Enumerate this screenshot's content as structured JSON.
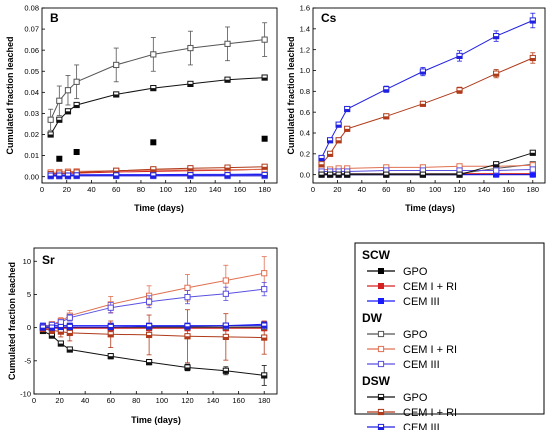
{
  "chart_data": [
    {
      "type": "line",
      "title": "B",
      "xlabel": "Time (days)",
      "ylabel": "Cumulated fraction leached",
      "xlim": [
        0,
        190
      ],
      "ylim": [
        -0.003,
        0.08
      ],
      "xticks": [
        0,
        20,
        40,
        60,
        80,
        100,
        120,
        140,
        160,
        180
      ],
      "yticks": [
        0.0,
        0.01,
        0.02,
        0.03,
        0.04,
        0.05,
        0.06,
        0.07,
        0.08
      ],
      "tick_decimals": 2,
      "series": [
        {
          "name": "SCW GPO",
          "x": [
            14,
            28,
            90,
            180
          ],
          "y": [
            0.0085,
            0.0117,
            0.0163,
            0.018
          ],
          "err": [
            0,
            0,
            0,
            0
          ],
          "line": false
        },
        {
          "name": "SCW CEM I + RI",
          "x": [
            7,
            14,
            21,
            28,
            60,
            90,
            120,
            150,
            180
          ],
          "y": [
            0.0015,
            0.0015,
            0.0015,
            0.0017,
            0.0022,
            0.0025,
            0.0028,
            0.003,
            0.0035
          ],
          "err": [
            0,
            0,
            0,
            0,
            0,
            0,
            0,
            0,
            0
          ]
        },
        {
          "name": "SCW CEM III",
          "x": [
            7,
            14,
            21,
            28,
            60,
            90,
            120,
            150,
            180
          ],
          "y": [
            0.0008,
            0.0008,
            0.0008,
            0.0009,
            0.001,
            0.001,
            0.0011,
            0.0011,
            0.0012
          ],
          "err": [
            0,
            0,
            0,
            0,
            0,
            0,
            0,
            0,
            0
          ]
        },
        {
          "name": "DW GPO",
          "x": [
            7,
            14,
            21,
            28,
            60,
            90,
            120,
            150,
            180
          ],
          "y": [
            0.027,
            0.036,
            0.041,
            0.045,
            0.053,
            0.058,
            0.061,
            0.063,
            0.065
          ],
          "err": [
            0.005,
            0.007,
            0.007,
            0.008,
            0.008,
            0.008,
            0.008,
            0.008,
            0.008
          ]
        },
        {
          "name": "DW CEM I + RI",
          "x": [
            7,
            14,
            21,
            28,
            60,
            90,
            120,
            150,
            180
          ],
          "y": [
            0.002,
            0.0022,
            0.0024,
            0.0025,
            0.0028,
            0.003,
            0.0032,
            0.0033,
            0.0035
          ],
          "err": [
            0,
            0,
            0,
            0,
            0,
            0,
            0,
            0,
            0
          ]
        },
        {
          "name": "DW CEM III",
          "x": [
            7,
            14,
            21,
            28,
            60,
            90,
            120,
            150,
            180
          ],
          "y": [
            0.0002,
            0.0002,
            0.0002,
            0.0003,
            0.0003,
            0.0003,
            0.0003,
            0.0003,
            0.0003
          ],
          "err": [
            0,
            0,
            0,
            0,
            0,
            0,
            0,
            0,
            0
          ]
        },
        {
          "name": "DSW GPO",
          "x": [
            7,
            14,
            21,
            28,
            60,
            90,
            120,
            150,
            180
          ],
          "y": [
            0.02,
            0.027,
            0.031,
            0.034,
            0.039,
            0.042,
            0.044,
            0.046,
            0.047
          ],
          "err": [
            0.001,
            0.001,
            0.001,
            0.001,
            0.001,
            0.001,
            0.001,
            0.001,
            0.001
          ]
        },
        {
          "name": "DSW CEM I + RI",
          "x": [
            7,
            14,
            21,
            28,
            60,
            90,
            120,
            150,
            180
          ],
          "y": [
            0.0012,
            0.0015,
            0.0018,
            0.002,
            0.0028,
            0.0035,
            0.004,
            0.0043,
            0.0047
          ],
          "err": [
            0,
            0,
            0,
            0,
            0,
            0,
            0,
            0,
            0
          ]
        },
        {
          "name": "DSW CEM III",
          "x": [
            7,
            14,
            21,
            28,
            60,
            90,
            120,
            150,
            180
          ],
          "y": [
            0.0005,
            0.0005,
            0.0005,
            0.0006,
            0.0006,
            0.0006,
            0.0007,
            0.0007,
            0.0008
          ],
          "err": [
            0,
            0,
            0,
            0,
            0,
            0,
            0,
            0,
            0
          ]
        }
      ]
    },
    {
      "type": "line",
      "title": "Cs",
      "xlabel": "Time (days)",
      "ylabel": "Cumulated fraction leached",
      "xlim": [
        0,
        190
      ],
      "ylim": [
        -0.08,
        1.6
      ],
      "xticks": [
        0,
        20,
        40,
        60,
        80,
        100,
        120,
        140,
        160,
        180
      ],
      "yticks": [
        0.0,
        0.2,
        0.4,
        0.6,
        0.8,
        1.0,
        1.2,
        1.4,
        1.6
      ],
      "tick_decimals": 1,
      "series": [
        {
          "name": "SCW GPO",
          "x": [
            7,
            14,
            21,
            28,
            60,
            90,
            120,
            150,
            180
          ],
          "y": [
            0.005,
            0.005,
            0.005,
            0.005,
            0.005,
            0.005,
            0.005,
            0.005,
            0.005
          ],
          "err": [
            0,
            0,
            0,
            0,
            0,
            0,
            0,
            0,
            0
          ]
        },
        {
          "name": "SCW CEM I + RI",
          "x": [
            7,
            14,
            21,
            28,
            60,
            90,
            120,
            150,
            180
          ],
          "y": [
            0.01,
            0.01,
            0.01,
            0.01,
            0.01,
            0.01,
            0.01,
            0.01,
            0.01
          ],
          "err": [
            0,
            0,
            0,
            0,
            0,
            0,
            0,
            0,
            0
          ]
        },
        {
          "name": "SCW CEM III",
          "x": [
            7,
            14,
            21,
            28,
            60,
            90,
            120,
            150,
            180
          ],
          "y": [
            0.0,
            0.0,
            0.0,
            0.0,
            0.0,
            0.0,
            0.0,
            0.0,
            0.0
          ],
          "err": [
            0,
            0,
            0,
            0,
            0,
            0,
            0,
            0,
            0
          ]
        },
        {
          "name": "DW GPO",
          "x": [
            7,
            14,
            21,
            28,
            60,
            90,
            120,
            150,
            180
          ],
          "y": [
            0.01,
            0.01,
            0.01,
            0.01,
            0.01,
            0.01,
            0.01,
            0.06,
            0.1
          ],
          "err": [
            0,
            0,
            0,
            0,
            0,
            0,
            0,
            0,
            0
          ]
        },
        {
          "name": "DW CEM I + RI",
          "x": [
            7,
            14,
            21,
            28,
            60,
            90,
            120,
            150,
            180
          ],
          "y": [
            0.05,
            0.05,
            0.06,
            0.06,
            0.07,
            0.07,
            0.08,
            0.08,
            0.09
          ],
          "err": [
            0,
            0,
            0,
            0,
            0,
            0,
            0,
            0,
            0
          ]
        },
        {
          "name": "DW CEM III",
          "x": [
            7,
            14,
            21,
            28,
            60,
            90,
            120,
            150,
            180
          ],
          "y": [
            0.03,
            0.03,
            0.03,
            0.03,
            0.04,
            0.04,
            0.04,
            0.04,
            0.05
          ],
          "err": [
            0,
            0,
            0,
            0,
            0,
            0,
            0,
            0,
            0
          ]
        },
        {
          "name": "DSW GPO",
          "x": [
            7,
            14,
            21,
            28,
            60,
            90,
            120,
            150,
            180
          ],
          "y": [
            0.0,
            0.0,
            0.0,
            0.0,
            0.0,
            0.0,
            0.0,
            0.1,
            0.21
          ],
          "err": [
            0,
            0,
            0,
            0,
            0,
            0,
            0,
            0,
            0
          ]
        },
        {
          "name": "DSW CEM I + RI",
          "x": [
            7,
            14,
            21,
            28,
            60,
            90,
            120,
            150,
            180
          ],
          "y": [
            0.1,
            0.2,
            0.33,
            0.44,
            0.56,
            0.68,
            0.81,
            0.97,
            1.12
          ],
          "err": [
            0.01,
            0.01,
            0.02,
            0.02,
            0.02,
            0.02,
            0.03,
            0.04,
            0.05
          ]
        },
        {
          "name": "DSW CEM III",
          "x": [
            7,
            14,
            21,
            28,
            60,
            90,
            120,
            150,
            180
          ],
          "y": [
            0.16,
            0.33,
            0.48,
            0.63,
            0.82,
            0.99,
            1.14,
            1.33,
            1.48
          ],
          "err": [
            0.01,
            0.01,
            0.02,
            0.02,
            0.03,
            0.04,
            0.05,
            0.05,
            0.07
          ]
        }
      ]
    },
    {
      "type": "line",
      "title": "Sr",
      "xlabel": "Time (days)",
      "ylabel": "Cumulated fraction leached",
      "xlim": [
        0,
        190
      ],
      "ylim": [
        -10,
        12
      ],
      "xticks": [
        0,
        20,
        40,
        60,
        80,
        100,
        120,
        140,
        160,
        180
      ],
      "yticks": [
        -10,
        -5,
        0,
        5,
        10
      ],
      "tick_decimals": 0,
      "series": [
        {
          "name": "SCW GPO",
          "x": [
            7,
            14,
            21,
            28,
            60,
            90,
            120,
            150,
            180
          ],
          "y": [
            0,
            0,
            0,
            0,
            0,
            0,
            0,
            0,
            0
          ],
          "err": [
            0,
            0,
            0,
            0,
            0,
            0,
            0,
            0,
            0
          ]
        },
        {
          "name": "SCW CEM I + RI",
          "x": [
            7,
            14,
            21,
            28,
            60,
            90,
            120,
            150,
            180
          ],
          "y": [
            -0.1,
            -0.1,
            -0.1,
            -0.1,
            -0.1,
            -0.1,
            -0.1,
            -0.1,
            -0.1
          ],
          "err": [
            0,
            0,
            0,
            0,
            0,
            0,
            0,
            0,
            0
          ]
        },
        {
          "name": "SCW CEM III",
          "x": [
            7,
            14,
            21,
            28,
            60,
            90,
            120,
            150,
            180
          ],
          "y": [
            0.3,
            0.3,
            0.3,
            0.3,
            0.3,
            0.3,
            0.3,
            0.3,
            0.5
          ],
          "err": [
            0,
            0,
            0,
            0,
            0,
            0,
            0,
            0,
            0
          ]
        },
        {
          "name": "DW GPO",
          "x": [
            7,
            14,
            21,
            28,
            60,
            90,
            120,
            150,
            180
          ],
          "y": [
            0.1,
            0.1,
            0.1,
            0.1,
            0.1,
            0.1,
            0.1,
            0.1,
            0.1
          ],
          "err": [
            0,
            0,
            0,
            0,
            0,
            0,
            0,
            0,
            0
          ]
        },
        {
          "name": "DW CEM I + RI",
          "x": [
            7,
            14,
            21,
            28,
            60,
            90,
            120,
            150,
            180
          ],
          "y": [
            0.1,
            0.5,
            1.0,
            1.8,
            3.5,
            4.8,
            6.0,
            7.1,
            8.2
          ],
          "err": [
            0.3,
            0.4,
            0.5,
            0.8,
            1.2,
            1.5,
            2.0,
            2.3,
            2.5
          ]
        },
        {
          "name": "DW CEM III",
          "x": [
            7,
            14,
            21,
            28,
            60,
            90,
            120,
            150,
            180
          ],
          "y": [
            0.1,
            0.4,
            0.8,
            1.5,
            3.0,
            3.9,
            4.6,
            5.1,
            5.8
          ],
          "err": [
            0.2,
            0.3,
            0.4,
            0.5,
            0.8,
            0.9,
            1.0,
            1.0,
            1.0
          ]
        },
        {
          "name": "DSW GPO",
          "x": [
            7,
            14,
            21,
            28,
            60,
            90,
            120,
            150,
            180
          ],
          "y": [
            -0.5,
            -1.2,
            -2.4,
            -3.3,
            -4.3,
            -5.2,
            -6.0,
            -6.5,
            -7.2
          ],
          "err": [
            0.2,
            0.2,
            0.3,
            0.3,
            0.4,
            0.4,
            0.5,
            0.6,
            1.5
          ]
        },
        {
          "name": "DSW CEM I + RI",
          "x": [
            7,
            14,
            21,
            28,
            60,
            90,
            120,
            150,
            180
          ],
          "y": [
            -0.2,
            -0.4,
            -0.6,
            -0.8,
            -1.0,
            -1.1,
            -1.3,
            -1.4,
            -1.5
          ],
          "err": [
            0.3,
            0.5,
            0.8,
            1.2,
            2.0,
            3.0,
            4.0,
            3.5,
            2.5
          ]
        },
        {
          "name": "DSW CEM III",
          "x": [
            7,
            14,
            21,
            28,
            60,
            90,
            120,
            150,
            180
          ],
          "y": [
            0.0,
            0.0,
            0.1,
            0.1,
            0.1,
            0.2,
            0.2,
            0.3,
            0.3
          ],
          "err": [
            0,
            0,
            0,
            0,
            0,
            0,
            0,
            0,
            0
          ]
        }
      ]
    }
  ],
  "styles": {
    "SCW GPO": {
      "color": "#000000",
      "marker": "filled"
    },
    "SCW CEM I + RI": {
      "color": "#d62020",
      "marker": "filled"
    },
    "SCW CEM III": {
      "color": "#1a1aff",
      "marker": "filled"
    },
    "DW GPO": {
      "color": "#555555",
      "marker": "open"
    },
    "DW CEM I + RI": {
      "color": "#e07050",
      "marker": "open"
    },
    "DW CEM III": {
      "color": "#5a50e0",
      "marker": "open"
    },
    "DSW GPO": {
      "color": "#111111",
      "marker": "half"
    },
    "DSW CEM I + RI": {
      "color": "#b03a1a",
      "marker": "half"
    },
    "DSW CEM III": {
      "color": "#2020e0",
      "marker": "half"
    }
  },
  "legend": {
    "groups": [
      {
        "label": "SCW",
        "entries": [
          {
            "series": "SCW GPO",
            "label": "GPO"
          },
          {
            "series": "SCW CEM I + RI",
            "label": "CEM I + RI"
          },
          {
            "series": "SCW CEM III",
            "label": "CEM III"
          }
        ]
      },
      {
        "label": "DW",
        "entries": [
          {
            "series": "DW GPO",
            "label": "GPO"
          },
          {
            "series": "DW CEM I + RI",
            "label": "CEM I + RI"
          },
          {
            "series": "DW CEM III",
            "label": "CEM III"
          }
        ]
      },
      {
        "label": "DSW",
        "entries": [
          {
            "series": "DSW GPO",
            "label": "GPO"
          },
          {
            "series": "DSW CEM I + RI",
            "label": "CEM I + RI"
          },
          {
            "series": "DSW CEM III",
            "label": "CEM III"
          }
        ]
      }
    ]
  }
}
